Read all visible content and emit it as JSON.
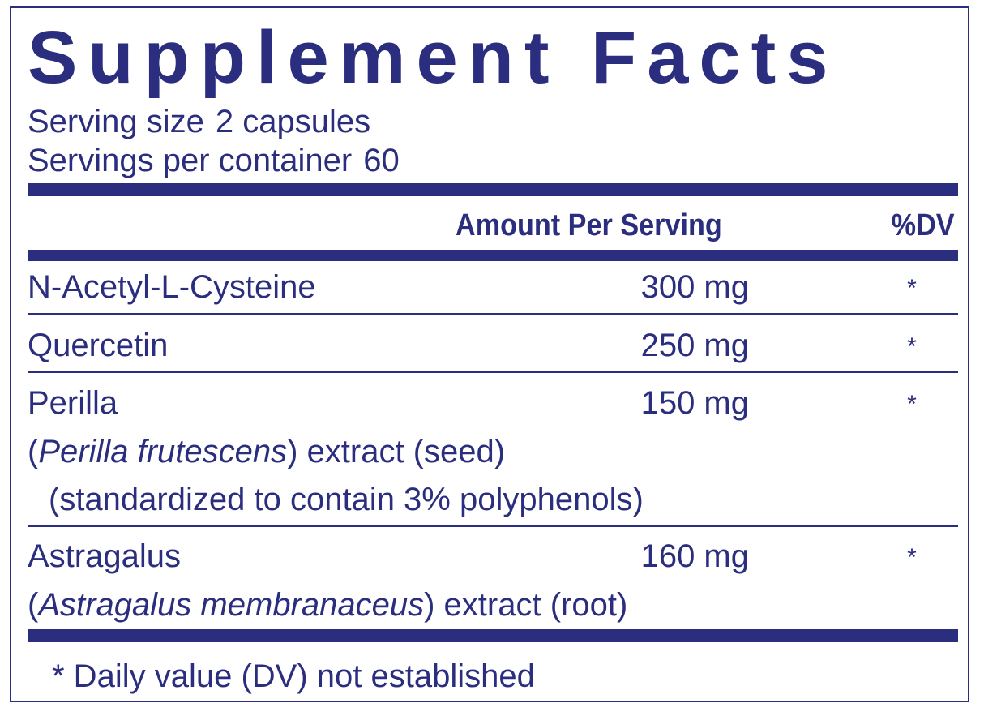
{
  "title": "Supplement Facts",
  "serving": {
    "size_label": "Serving size",
    "size_value": "2 capsules",
    "per_container_label": "Servings per container",
    "per_container_value": "60"
  },
  "header": {
    "amount": "Amount Per Serving",
    "dv": "%DV"
  },
  "ingredients": [
    {
      "name": "N-Acetyl-L-Cysteine",
      "amount": "300 mg",
      "dv": "*"
    },
    {
      "name": "Quercetin",
      "amount": "250 mg",
      "dv": "*"
    },
    {
      "name": "Perilla",
      "amount": "150 mg",
      "dv": "*",
      "latin": "Perilla frutescens",
      "extract": "extract (seed)",
      "note": "(standardized to contain 3% polyphenols)"
    },
    {
      "name": "Astragalus",
      "amount": "160 mg",
      "dv": "*",
      "latin": "Astragalus membranaceus",
      "extract": "extract (root)"
    }
  ],
  "footnote": "* Daily value (DV) not established",
  "colors": {
    "ink": "#2b2e7e",
    "background": "#ffffff"
  }
}
